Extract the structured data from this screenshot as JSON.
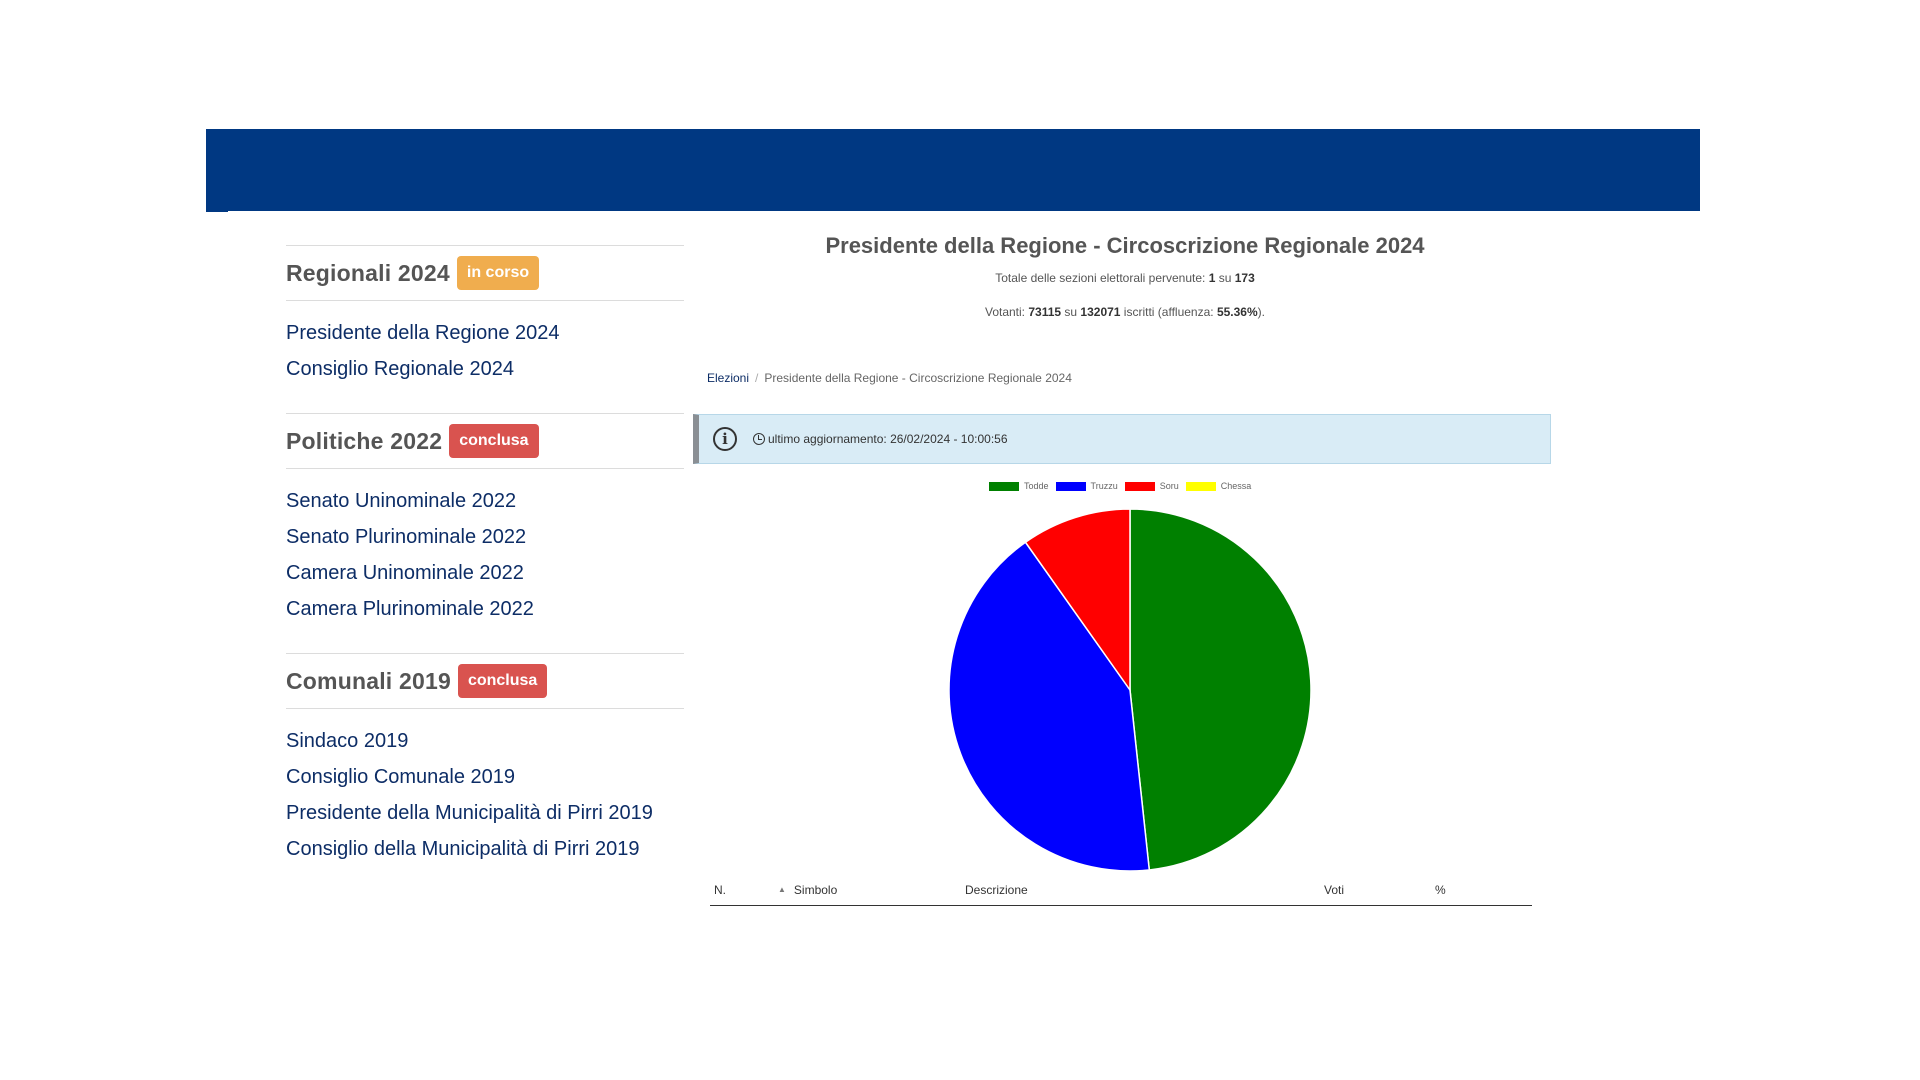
{
  "sidebar": {
    "sections": [
      {
        "title": "Regionali 2024",
        "badge": "in corso",
        "badge_color": "#f0ad4e",
        "links": [
          "Presidente della Regione 2024",
          "Consiglio Regionale 2024"
        ]
      },
      {
        "title": "Politiche 2022",
        "badge": "conclusa",
        "badge_color": "#d9534f",
        "links": [
          "Senato Uninominale 2022",
          "Senato Plurinominale 2022",
          "Camera Uninominale 2022",
          "Camera Plurinominale 2022"
        ]
      },
      {
        "title": "Comunali 2019",
        "badge": "conclusa",
        "badge_color": "#d9534f",
        "links": [
          "Sindaco 2019",
          "Consiglio Comunale 2019",
          "Presidente della Municipalità di Pirri 2019",
          "Consiglio della Municipalità di Pirri 2019"
        ]
      }
    ]
  },
  "main": {
    "title": "Presidente della Regione - Circoscrizione Regionale 2024",
    "sections_prefix": "Totale delle sezioni elettorali pervenute: ",
    "sections_received": "1",
    "sections_mid": " su ",
    "sections_total": "173",
    "voters_prefix": "Votanti: ",
    "voters": "73115",
    "voters_mid": " su ",
    "registered": "132071",
    "voters_mid2": " iscritti (affluenza: ",
    "turnout": "55.36%",
    "voters_suffix": ")."
  },
  "breadcrumb": {
    "root": "Elezioni",
    "separator": "/",
    "current": "Presidente della Regione - Circoscrizione Regionale 2024"
  },
  "alert": {
    "icon": "info-icon",
    "clock_icon": "clock-icon",
    "text": "ultimo aggiornamento: 26/02/2024 - 10:00:56"
  },
  "table": {
    "headers": [
      "N.",
      "Simbolo",
      "Descrizione",
      "Voti",
      "%"
    ]
  },
  "colors": {
    "header_bar": "#003882",
    "link": "#0d2d66"
  },
  "chart_data": {
    "type": "pie",
    "labels": [
      "Todde",
      "Truzzu",
      "Soru",
      "Chessa"
    ],
    "colors": [
      "#008000",
      "#0000ff",
      "#ff0000",
      "#ffff00"
    ],
    "values": [
      48.3,
      41.9,
      9.8,
      0
    ],
    "legend_position": "top"
  }
}
